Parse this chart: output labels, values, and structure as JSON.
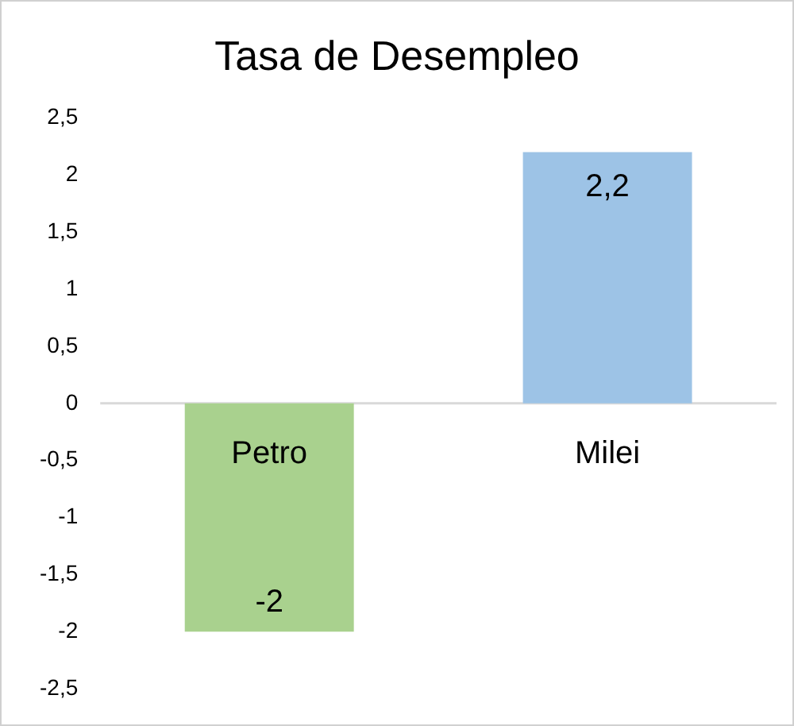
{
  "chart_data": {
    "type": "bar",
    "title": "Tasa de Desempleo",
    "categories": [
      "Petro",
      "Milei"
    ],
    "values": [
      -2,
      2.2
    ],
    "colors": [
      "#a9d18e",
      "#9dc3e6"
    ],
    "value_labels": [
      "-2",
      "2,2"
    ],
    "ylim": [
      -2.5,
      2.5
    ],
    "yticks": [
      {
        "value": -2.5,
        "label": "-2,5"
      },
      {
        "value": -2,
        "label": "-2"
      },
      {
        "value": -1.5,
        "label": "-1,5"
      },
      {
        "value": -1,
        "label": "-1"
      },
      {
        "value": -0.5,
        "label": "-0,5"
      },
      {
        "value": 0,
        "label": "0"
      },
      {
        "value": 0.5,
        "label": "0,5"
      },
      {
        "value": 1,
        "label": "1"
      },
      {
        "value": 1.5,
        "label": "1,5"
      },
      {
        "value": 2,
        "label": "2"
      },
      {
        "value": 2.5,
        "label": "2,5"
      }
    ],
    "grid": false,
    "legend": false
  }
}
